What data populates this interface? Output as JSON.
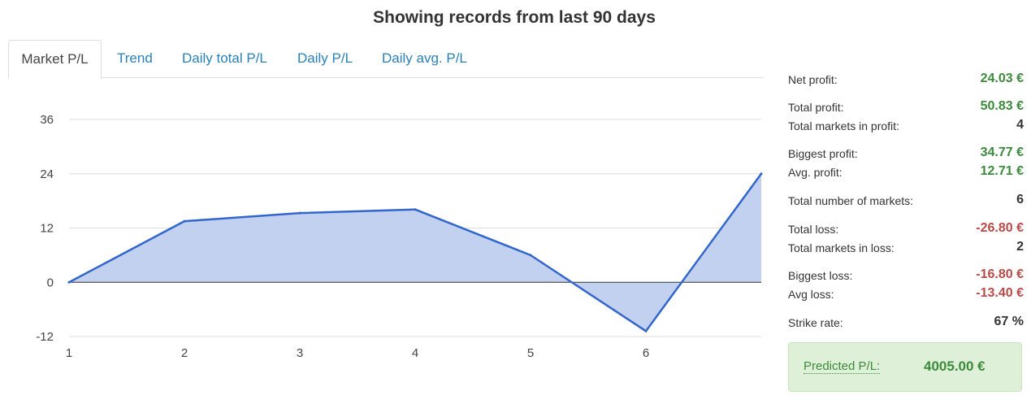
{
  "header": {
    "title": "Showing records from last 90 days"
  },
  "tabs": [
    {
      "label": "Market P/L",
      "active": true
    },
    {
      "label": "Trend"
    },
    {
      "label": "Daily total P/L"
    },
    {
      "label": "Daily P/L"
    },
    {
      "label": "Daily avg. P/L"
    }
  ],
  "chart_data": {
    "type": "area",
    "x": [
      1,
      2,
      3,
      4,
      5,
      6,
      7
    ],
    "x_tick_labels": [
      "1",
      "2",
      "3",
      "4",
      "5",
      "6"
    ],
    "series": [
      {
        "values": [
          0,
          13.5,
          15.3,
          16.1,
          6.0,
          -10.8,
          24.0
        ]
      }
    ],
    "y_ticks": [
      "36",
      "24",
      "12",
      "0",
      "-12"
    ],
    "ylim": [
      -12,
      36
    ],
    "grid": true,
    "colors": {
      "line": "#3366cc",
      "fill": "#c2d1ef",
      "grid": "#dddddd",
      "zero": "#333333"
    }
  },
  "stats": {
    "net_profit": {
      "label": "Net profit:",
      "value": "24.03 €"
    },
    "total_profit": {
      "label": "Total profit:",
      "value": "50.83 €"
    },
    "markets_in_profit": {
      "label": "Total markets in profit:",
      "value": "4"
    },
    "biggest_profit": {
      "label": "Biggest profit:",
      "value": "34.77 €"
    },
    "avg_profit": {
      "label": "Avg. profit:",
      "value": "12.71 €"
    },
    "total_markets": {
      "label": "Total number of markets:",
      "value": "6"
    },
    "total_loss": {
      "label": "Total loss:",
      "value": "-26.80 €"
    },
    "markets_in_loss": {
      "label": "Total markets in loss:",
      "value": "2"
    },
    "biggest_loss": {
      "label": "Biggest loss:",
      "value": "-16.80 €"
    },
    "avg_loss": {
      "label": "Avg loss:",
      "value": "-13.40 €"
    },
    "strike_rate": {
      "label": "Strike rate:",
      "value": "67 %"
    }
  },
  "predicted": {
    "label": "Predicted P/L:",
    "value": "4005.00 €"
  },
  "colors": {
    "positive": "#3c8a3c",
    "negative": "#b94a48",
    "link": "#2a80b9"
  }
}
